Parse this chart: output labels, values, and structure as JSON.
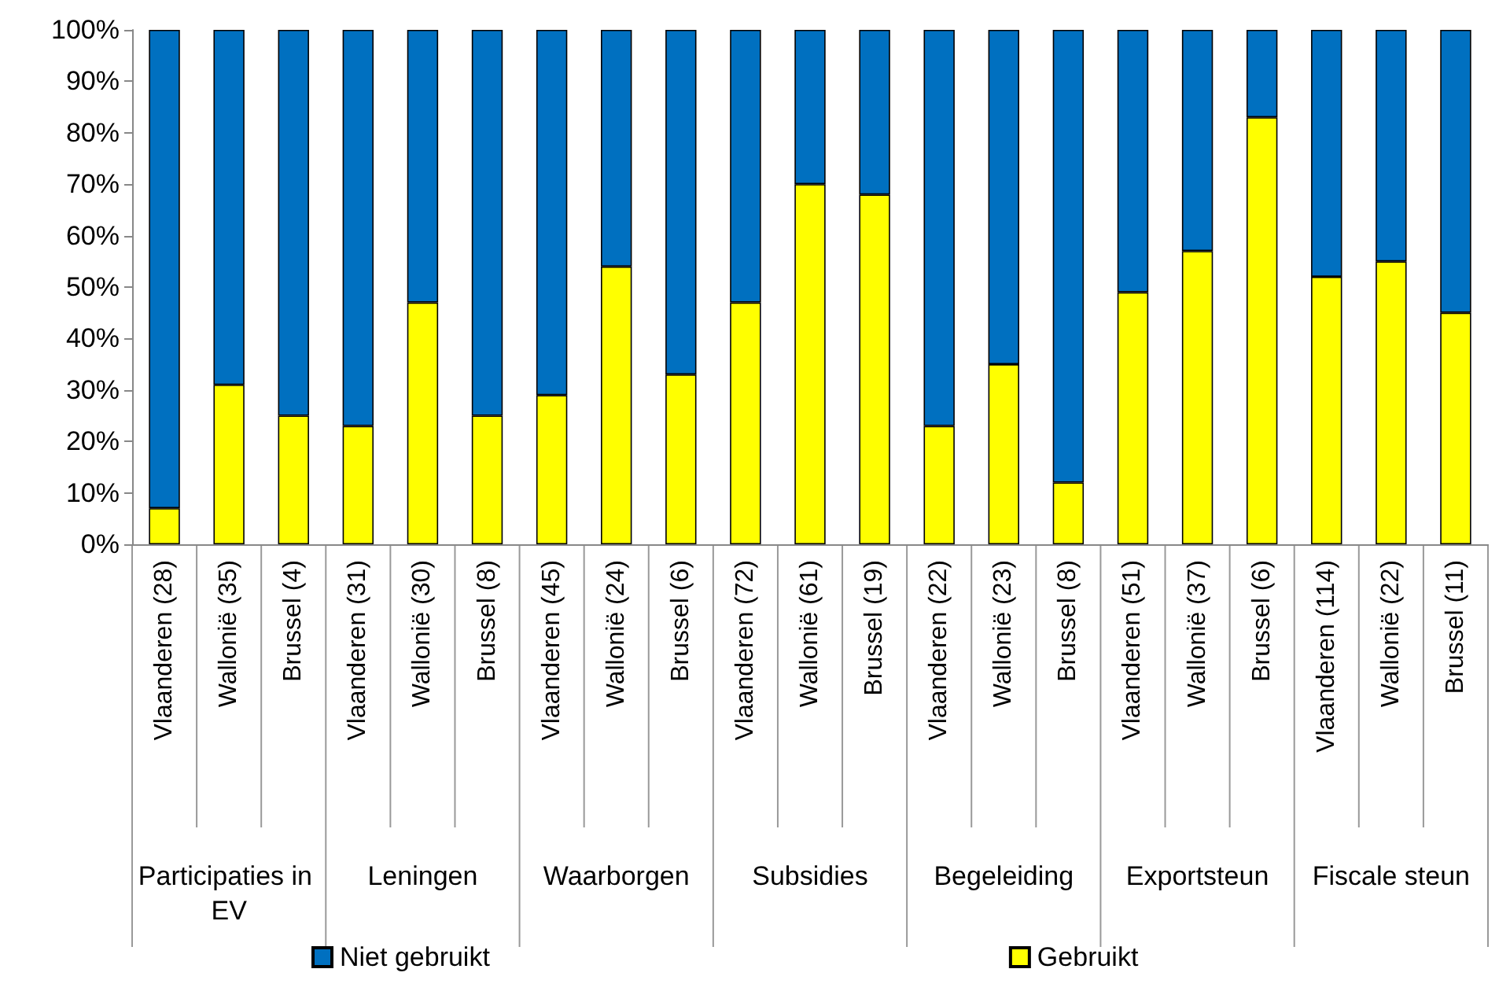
{
  "chart_data": {
    "type": "bar",
    "stacked": true,
    "categories": [
      "Vlaanderen (28)",
      "Wallonië (35)",
      "Brussel (4)",
      "Vlaanderen (31)",
      "Wallonië (30)",
      "Brussel (8)",
      "Vlaanderen (45)",
      "Wallonië (24)",
      "Brussel (6)",
      "Vlaanderen (72)",
      "Wallonië (61)",
      "Brussel (19)",
      "Vlaanderen (22)",
      "Wallonië (23)",
      "Brussel (8)",
      "Vlaanderen (51)",
      "Wallonië (37)",
      "Brussel (6)",
      "Vlaanderen (114)",
      "Wallonië (22)",
      "Brussel (11)"
    ],
    "series": [
      {
        "name": "Gebruikt",
        "color": "#ffff00",
        "values": [
          7,
          31,
          25,
          23,
          47,
          25,
          29,
          54,
          33,
          47,
          70,
          68,
          23,
          35,
          12,
          49,
          57,
          83,
          52,
          55,
          45
        ]
      },
      {
        "name": "Niet gebruikt",
        "color": "#0070c0",
        "values": [
          93,
          69,
          75,
          77,
          53,
          75,
          71,
          46,
          67,
          53,
          30,
          32,
          77,
          65,
          88,
          51,
          43,
          17,
          48,
          45,
          55
        ]
      }
    ],
    "annotations": [
      "Participaties in EV",
      "Leningen",
      "Waarborgen",
      "Subsidies",
      "Begeleiding",
      "Exportsteun",
      "Fiscale steun"
    ],
    "ylim": [
      0,
      100
    ],
    "yticks": [
      {
        "value": 0,
        "label": "0%"
      },
      {
        "value": 10,
        "label": "10%"
      },
      {
        "value": 20,
        "label": "20%"
      },
      {
        "value": 30,
        "label": "30%"
      },
      {
        "value": 40,
        "label": "40%"
      },
      {
        "value": 50,
        "label": "50%"
      },
      {
        "value": 60,
        "label": "60%"
      },
      {
        "value": 70,
        "label": "70%"
      },
      {
        "value": 80,
        "label": "80%"
      },
      {
        "value": 90,
        "label": "90%"
      },
      {
        "value": 100,
        "label": "100%"
      }
    ],
    "grid": false,
    "legend": "bottom"
  }
}
